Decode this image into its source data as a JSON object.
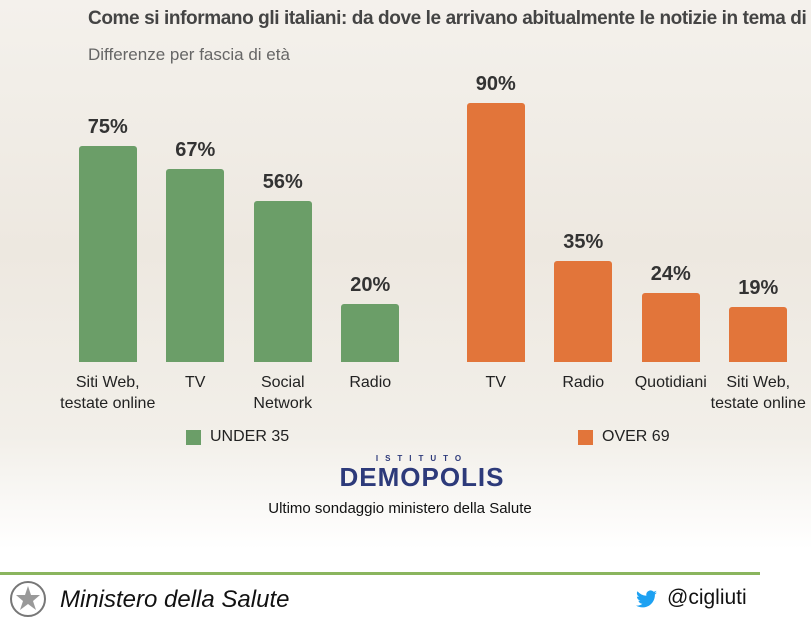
{
  "title": "Come si informano gli italiani: da dove le arrivano abitualmente le notizie in tema di salute?",
  "subtitle": "Differenze per fascia di età",
  "chart_data": [
    {
      "type": "bar",
      "categories": [
        "Siti Web,\ntestate online",
        "TV",
        "Social\nNetwork",
        "Radio"
      ],
      "series": [
        {
          "name": "UNDER 35",
          "color": "#6b9e68",
          "values": [
            75,
            67,
            56,
            20
          ],
          "value_labels": [
            "75%",
            "67%",
            "56%",
            "20%"
          ]
        }
      ]
    },
    {
      "type": "bar",
      "categories": [
        "TV",
        "Radio",
        "Quotidiani",
        "Siti Web,\ntestate online"
      ],
      "series": [
        {
          "name": "OVER 69",
          "color": "#e2753a",
          "values": [
            90,
            35,
            24,
            19
          ],
          "value_labels": [
            "90%",
            "35%",
            "24%",
            "19%"
          ]
        }
      ]
    }
  ],
  "logo": {
    "top": "ISTITUTO",
    "name": "DEMOPOLIS"
  },
  "caption": "Ultimo sondaggio ministero della Salute",
  "footer": {
    "ministry": "Ministero della Salute",
    "handle": "@cigliuti"
  }
}
